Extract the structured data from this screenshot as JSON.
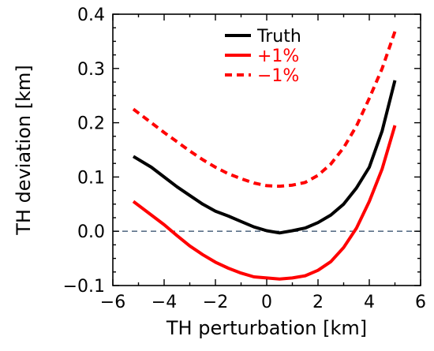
{
  "chart_data": {
    "type": "line",
    "xlabel": "TH perturbation [km]",
    "ylabel": "TH deviation [km]",
    "xlim": [
      -6,
      6
    ],
    "ylim": [
      -0.1,
      0.4
    ],
    "xticks": [
      -6,
      -4,
      -2,
      0,
      2,
      4,
      6
    ],
    "xtick_labels": [
      "−6",
      "−4",
      "−2",
      "0",
      "2",
      "4",
      "6"
    ],
    "yticks": [
      -0.1,
      0.0,
      0.1,
      0.2,
      0.3,
      0.4
    ],
    "ytick_labels": [
      "−0.1",
      "0.0",
      "0.1",
      "0.2",
      "0.3",
      "0.4"
    ],
    "grid": false,
    "legend_position": "top-center",
    "reference_line": {
      "y": 0.0,
      "color": "#5a7089",
      "style": "dashed"
    },
    "series": [
      {
        "name": "Truth",
        "color": "#000000",
        "style": "solid",
        "x": [
          -5.2,
          -4.5,
          -4.0,
          -3.5,
          -3.0,
          -2.5,
          -2.0,
          -1.5,
          -1.0,
          -0.5,
          0.0,
          0.5,
          1.0,
          1.5,
          2.0,
          2.5,
          3.0,
          3.5,
          4.0,
          4.5,
          5.0
        ],
        "y": [
          0.138,
          0.118,
          0.1,
          0.082,
          0.066,
          0.05,
          0.037,
          0.028,
          0.018,
          0.008,
          0.001,
          -0.003,
          0.001,
          0.006,
          0.016,
          0.03,
          0.05,
          0.08,
          0.118,
          0.185,
          0.278
        ]
      },
      {
        "name": "+1%",
        "color": "#ff0000",
        "style": "solid",
        "x": [
          -5.2,
          -4.5,
          -4.0,
          -3.5,
          -3.0,
          -2.5,
          -2.0,
          -1.5,
          -1.0,
          -0.5,
          0.0,
          0.5,
          1.0,
          1.5,
          2.0,
          2.5,
          3.0,
          3.5,
          4.0,
          4.5,
          5.0
        ],
        "y": [
          0.055,
          0.03,
          0.012,
          -0.008,
          -0.027,
          -0.043,
          -0.057,
          -0.068,
          -0.077,
          -0.084,
          -0.086,
          -0.088,
          -0.086,
          -0.082,
          -0.072,
          -0.056,
          -0.03,
          0.006,
          0.055,
          0.115,
          0.195
        ]
      },
      {
        "name": "−1%",
        "color": "#ff0000",
        "style": "dashed",
        "x": [
          -5.2,
          -4.5,
          -4.0,
          -3.5,
          -3.0,
          -2.5,
          -2.0,
          -1.5,
          -1.0,
          -0.5,
          0.0,
          0.5,
          1.0,
          1.5,
          2.0,
          2.5,
          3.0,
          3.5,
          4.0,
          4.5,
          5.0
        ],
        "y": [
          0.225,
          0.2,
          0.182,
          0.165,
          0.148,
          0.132,
          0.118,
          0.106,
          0.097,
          0.089,
          0.084,
          0.083,
          0.085,
          0.09,
          0.103,
          0.124,
          0.154,
          0.194,
          0.245,
          0.3,
          0.368
        ]
      }
    ]
  }
}
